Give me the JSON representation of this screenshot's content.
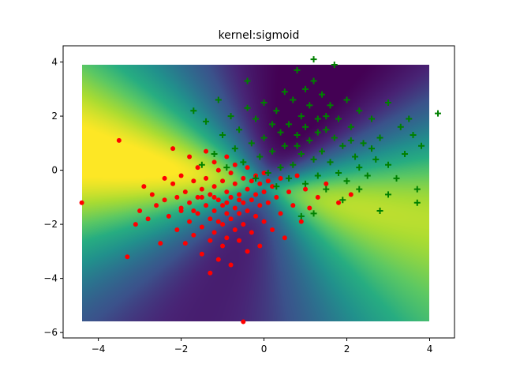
{
  "chart_data": {
    "type": "scatter",
    "title": "kernel:sigmoid",
    "xlabel": "",
    "ylabel": "",
    "xlim": [
      -4.85,
      4.6
    ],
    "ylim": [
      -6.2,
      4.6
    ],
    "grid": false,
    "x_ticks": [
      -4,
      -2,
      0,
      2,
      4
    ],
    "x_tick_labels": [
      "−4",
      "−2",
      "0",
      "2",
      "4"
    ],
    "y_ticks": [
      -6,
      -4,
      -2,
      0,
      2,
      4
    ],
    "y_tick_labels": [
      "−6",
      "−4",
      "−2",
      "0",
      "2",
      "4"
    ],
    "background": {
      "type": "decision-function-heatmap",
      "colormap": "viridis",
      "x_range": [
        -4.4,
        4.0
      ],
      "y_range": [
        -5.6,
        3.9
      ]
    },
    "series": [
      {
        "marker": "dot",
        "color": "#ff0000",
        "points": [
          [
            -4.4,
            -1.2
          ],
          [
            -3.5,
            1.1
          ],
          [
            -3.3,
            -3.2
          ],
          [
            -3.1,
            -2.0
          ],
          [
            -3.0,
            -1.5
          ],
          [
            -2.9,
            -0.6
          ],
          [
            -2.8,
            -1.8
          ],
          [
            -2.7,
            -0.9
          ],
          [
            -2.6,
            -1.3
          ],
          [
            -2.5,
            -2.7
          ],
          [
            -2.4,
            -0.3
          ],
          [
            -2.4,
            -1.1
          ],
          [
            -2.3,
            -1.7
          ],
          [
            -2.2,
            0.8
          ],
          [
            -2.2,
            -0.5
          ],
          [
            -2.1,
            -1.0
          ],
          [
            -2.1,
            -2.2
          ],
          [
            -2.0,
            -0.2
          ],
          [
            -2.0,
            -1.4
          ],
          [
            -1.9,
            -2.7
          ],
          [
            -1.9,
            -0.8
          ],
          [
            -1.8,
            0.5
          ],
          [
            -1.8,
            -1.2
          ],
          [
            -1.8,
            -1.9
          ],
          [
            -1.7,
            -0.4
          ],
          [
            -1.7,
            -2.4
          ],
          [
            -1.6,
            -1.0
          ],
          [
            -1.6,
            0.1
          ],
          [
            -1.6,
            -1.6
          ],
          [
            -1.5,
            -0.7
          ],
          [
            -1.5,
            -2.1
          ],
          [
            -1.5,
            -3.1
          ],
          [
            -1.4,
            0.7
          ],
          [
            -1.4,
            -0.3
          ],
          [
            -1.4,
            -1.3
          ],
          [
            -1.3,
            -0.9
          ],
          [
            -1.3,
            -1.8
          ],
          [
            -1.3,
            -2.6
          ],
          [
            -1.3,
            -3.8
          ],
          [
            -1.2,
            0.3
          ],
          [
            -1.2,
            -0.6
          ],
          [
            -1.2,
            -1.5
          ],
          [
            -1.2,
            -2.3
          ],
          [
            -1.1,
            0.0
          ],
          [
            -1.1,
            -1.1
          ],
          [
            -1.1,
            -1.9
          ],
          [
            -1.1,
            -3.3
          ],
          [
            -1.0,
            -0.4
          ],
          [
            -1.0,
            -1.3
          ],
          [
            -1.0,
            -2.0
          ],
          [
            -1.0,
            -2.8
          ],
          [
            -0.9,
            0.5
          ],
          [
            -0.9,
            -0.8
          ],
          [
            -0.9,
            -1.6
          ],
          [
            -0.9,
            -2.5
          ],
          [
            -0.8,
            -0.1
          ],
          [
            -0.8,
            -1.0
          ],
          [
            -0.8,
            -1.8
          ],
          [
            -0.8,
            -3.5
          ],
          [
            -0.7,
            -0.5
          ],
          [
            -0.7,
            -1.4
          ],
          [
            -0.7,
            -2.2
          ],
          [
            -0.7,
            0.2
          ],
          [
            -0.6,
            -0.9
          ],
          [
            -0.6,
            -1.6
          ],
          [
            -0.6,
            -2.6
          ],
          [
            -0.5,
            -0.3
          ],
          [
            -0.5,
            -1.2
          ],
          [
            -0.5,
            -2.0
          ],
          [
            -0.5,
            -5.6
          ],
          [
            -0.4,
            0.1
          ],
          [
            -0.4,
            -0.7
          ],
          [
            -0.4,
            -1.5
          ],
          [
            -0.4,
            -3.0
          ],
          [
            -0.3,
            -0.4
          ],
          [
            -0.3,
            -1.1
          ],
          [
            -0.3,
            -2.3
          ],
          [
            -0.2,
            -0.2
          ],
          [
            -0.2,
            -0.9
          ],
          [
            -0.2,
            -1.7
          ],
          [
            -0.1,
            -0.5
          ],
          [
            -0.1,
            -1.3
          ],
          [
            -0.1,
            -2.8
          ],
          [
            0.0,
            -0.1
          ],
          [
            0.0,
            -0.8
          ],
          [
            0.0,
            -1.9
          ],
          [
            0.1,
            -0.4
          ],
          [
            0.1,
            -1.2
          ],
          [
            0.2,
            -0.6
          ],
          [
            0.2,
            -2.2
          ],
          [
            0.3,
            -1.0
          ],
          [
            0.4,
            -0.3
          ],
          [
            0.4,
            -1.6
          ],
          [
            0.5,
            -2.5
          ],
          [
            0.6,
            -0.8
          ],
          [
            0.7,
            -1.3
          ],
          [
            0.8,
            -0.2
          ],
          [
            0.9,
            -1.9
          ],
          [
            1.0,
            -0.7
          ],
          [
            1.1,
            -1.4
          ],
          [
            1.3,
            -1.0
          ],
          [
            1.5,
            -0.5
          ],
          [
            1.8,
            -1.2
          ],
          [
            2.1,
            -0.9
          ],
          [
            -2.0,
            -1.5
          ],
          [
            -1.7,
            -1.5
          ],
          [
            -1.5,
            -1.0
          ],
          [
            -1.2,
            -1.0
          ],
          [
            -0.9,
            -1.2
          ],
          [
            -0.6,
            -1.1
          ]
        ]
      },
      {
        "marker": "plus",
        "color": "#008000",
        "points": [
          [
            4.2,
            2.1
          ],
          [
            3.8,
            0.9
          ],
          [
            3.7,
            -0.7
          ],
          [
            3.7,
            -1.2
          ],
          [
            3.6,
            1.3
          ],
          [
            3.5,
            1.9
          ],
          [
            3.4,
            0.6
          ],
          [
            3.3,
            1.6
          ],
          [
            3.2,
            -0.3
          ],
          [
            3.0,
            2.5
          ],
          [
            3.0,
            -0.9
          ],
          [
            2.8,
            1.2
          ],
          [
            2.8,
            -1.5
          ],
          [
            2.7,
            0.4
          ],
          [
            2.6,
            1.9
          ],
          [
            2.5,
            -0.2
          ],
          [
            2.4,
            1.0
          ],
          [
            2.3,
            2.2
          ],
          [
            2.3,
            -0.7
          ],
          [
            2.2,
            0.5
          ],
          [
            2.1,
            1.6
          ],
          [
            2.0,
            -0.4
          ],
          [
            2.0,
            2.6
          ],
          [
            1.9,
            0.9
          ],
          [
            1.8,
            1.9
          ],
          [
            1.8,
            -0.1
          ],
          [
            1.7,
            3.9
          ],
          [
            1.7,
            1.2
          ],
          [
            1.6,
            0.3
          ],
          [
            1.6,
            2.4
          ],
          [
            1.5,
            -0.7
          ],
          [
            1.5,
            1.5
          ],
          [
            1.4,
            0.7
          ],
          [
            1.4,
            2.8
          ],
          [
            1.3,
            -0.2
          ],
          [
            1.3,
            1.9
          ],
          [
            1.2,
            4.1
          ],
          [
            1.2,
            0.4
          ],
          [
            1.2,
            3.3
          ],
          [
            1.1,
            1.1
          ],
          [
            1.1,
            2.4
          ],
          [
            1.0,
            -0.5
          ],
          [
            1.0,
            1.6
          ],
          [
            1.0,
            3.0
          ],
          [
            0.9,
            0.6
          ],
          [
            0.9,
            2.0
          ],
          [
            0.8,
            3.7
          ],
          [
            0.8,
            1.3
          ],
          [
            0.7,
            0.2
          ],
          [
            0.7,
            2.6
          ],
          [
            0.6,
            1.7
          ],
          [
            0.6,
            -0.3
          ],
          [
            0.5,
            0.9
          ],
          [
            0.5,
            2.9
          ],
          [
            0.4,
            1.4
          ],
          [
            0.4,
            0.1
          ],
          [
            0.3,
            2.2
          ],
          [
            0.2,
            0.7
          ],
          [
            0.2,
            1.7
          ],
          [
            0.1,
            -0.1
          ],
          [
            0.0,
            1.2
          ],
          [
            0.0,
            2.5
          ],
          [
            -0.1,
            0.5
          ],
          [
            -0.2,
            1.9
          ],
          [
            -0.2,
            -0.3
          ],
          [
            -0.3,
            1.0
          ],
          [
            -0.4,
            2.3
          ],
          [
            -0.5,
            0.3
          ],
          [
            -0.6,
            1.5
          ],
          [
            -0.7,
            0.8
          ],
          [
            -0.8,
            2.0
          ],
          [
            -0.9,
            0.1
          ],
          [
            -1.0,
            1.3
          ],
          [
            -1.1,
            2.6
          ],
          [
            -1.2,
            0.6
          ],
          [
            -1.4,
            1.8
          ],
          [
            -1.5,
            0.2
          ],
          [
            -1.7,
            2.2
          ],
          [
            -0.4,
            3.3
          ],
          [
            0.9,
            -1.7
          ],
          [
            1.2,
            -1.6
          ],
          [
            2.3,
            0.1
          ],
          [
            2.6,
            0.8
          ],
          [
            3.0,
            0.2
          ],
          [
            1.9,
            -1.1
          ],
          [
            0.3,
            -0.6
          ],
          [
            1.5,
            2.0
          ],
          [
            2.1,
            1.1
          ],
          [
            0.8,
            0.9
          ],
          [
            1.3,
            1.4
          ]
        ]
      }
    ]
  }
}
